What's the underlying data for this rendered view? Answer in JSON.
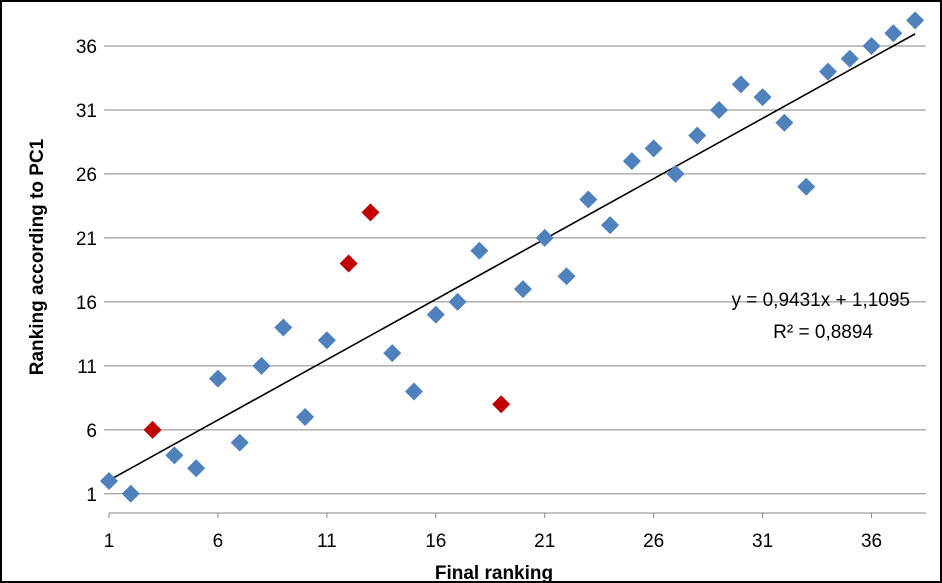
{
  "chart_data": {
    "type": "scatter",
    "title": "",
    "xlabel": "Final ranking",
    "ylabel": "Ranking according to PC1",
    "xlim": [
      1,
      38.5
    ],
    "ylim": [
      -0.5,
      38.5
    ],
    "x_ticks": [
      1,
      6,
      11,
      16,
      21,
      26,
      31,
      36
    ],
    "y_ticks": [
      1,
      6,
      11,
      16,
      21,
      26,
      31,
      36
    ],
    "grid": "horizontal",
    "legend": "none",
    "colors": {
      "normal": "#4f81bd",
      "highlight": "#c00000",
      "trendline": "#000000",
      "grid": "#868686"
    },
    "series": [
      {
        "color": "#4f81bd",
        "points": [
          [
            1,
            2
          ],
          [
            2,
            1
          ],
          [
            4,
            4
          ],
          [
            5,
            3
          ],
          [
            6,
            10
          ],
          [
            7,
            5
          ],
          [
            8,
            11
          ],
          [
            9,
            14
          ],
          [
            10,
            7
          ],
          [
            11,
            13
          ],
          [
            14,
            12
          ],
          [
            15,
            9
          ],
          [
            16,
            15
          ],
          [
            17,
            16
          ],
          [
            18,
            20
          ],
          [
            20,
            17
          ],
          [
            21,
            21
          ],
          [
            22,
            18
          ],
          [
            23,
            24
          ],
          [
            24,
            22
          ],
          [
            25,
            27
          ],
          [
            26,
            28
          ],
          [
            27,
            26
          ],
          [
            28,
            29
          ],
          [
            29,
            31
          ],
          [
            30,
            33
          ],
          [
            31,
            32
          ],
          [
            32,
            30
          ],
          [
            33,
            25
          ],
          [
            34,
            34
          ],
          [
            35,
            35
          ],
          [
            36,
            36
          ],
          [
            37,
            37
          ],
          [
            38,
            38
          ]
        ]
      },
      {
        "color": "#c00000",
        "points": [
          [
            3,
            6
          ],
          [
            12,
            19
          ],
          [
            13,
            23
          ],
          [
            19,
            8
          ]
        ]
      }
    ],
    "trendline": {
      "slope": 0.9431,
      "intercept": 1.1095,
      "x_range": [
        1,
        38
      ],
      "equation": "y = 0,9431x + 1,1095",
      "r2": "R² = 0,8894"
    }
  }
}
